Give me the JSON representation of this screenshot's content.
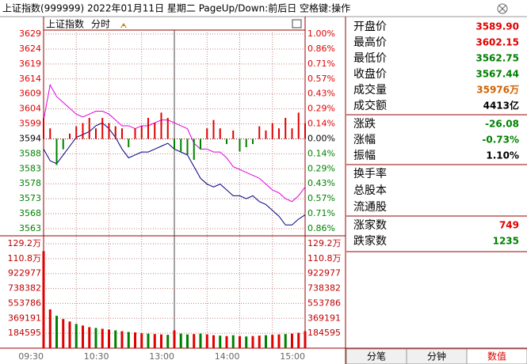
{
  "header": {
    "title": "上证指数(999999) 2022年01月11日 星期二 PageUp/Down:前后日 空格键:操作"
  },
  "chart_data": [
    {
      "type": "line",
      "title": "上证指数",
      "subtitle": "分时",
      "series": [
        {
          "color": "#000080",
          "values": [
            3590,
            3586,
            3585,
            3588,
            3591,
            3594,
            3595,
            3596,
            3598,
            3599,
            3597,
            3594,
            3590,
            3587,
            3588,
            3589,
            3589,
            3590,
            3591,
            3592,
            3590,
            3589,
            3588,
            3584,
            3580,
            3578,
            3577,
            3578,
            3576,
            3574,
            3574,
            3573,
            3574,
            3572,
            3571,
            3569,
            3567,
            3564,
            3564,
            3566,
            3567.44
          ]
        },
        {
          "color": "#e000e0",
          "values": [
            3600,
            3612,
            3608,
            3606,
            3604,
            3602,
            3601,
            3602,
            3603,
            3603,
            3602,
            3600,
            3598,
            3598,
            3597,
            3598,
            3598,
            3599,
            3600,
            3600,
            3599,
            3598,
            3597,
            3592,
            3590,
            3590,
            3589,
            3589,
            3587,
            3584,
            3583,
            3582,
            3581,
            3580,
            3578,
            3576,
            3575,
            3573,
            3572,
            3574,
            3577
          ]
        },
        {
          "type": "bar",
          "axis": "y2",
          "values": [
            0.2,
            0.1,
            -0.25,
            -0.1,
            0.05,
            0.12,
            0.15,
            0.2,
            0.1,
            0.2,
            0.15,
            0.12,
            0.1,
            -0.08,
            0.1,
            0.12,
            0.2,
            0.15,
            0.25,
            0.2,
            -0.1,
            -0.12,
            -0.15,
            -0.2,
            -0.1,
            0.1,
            0.18,
            0.1,
            -0.05,
            0.08,
            -0.12,
            -0.08,
            -0.05,
            0.12,
            0.08,
            0.15,
            0.1,
            0.2,
            0.1,
            0.25,
            0.15
          ]
        }
      ],
      "ylim": [
        3562.71,
        3629.46
      ],
      "yticks": [
        {
          "value": 3562.71,
          "label": "3563"
        },
        {
          "value": 3567.85,
          "label": "3568"
        },
        {
          "value": 3572.98,
          "label": "3573"
        },
        {
          "value": 3578.12,
          "label": "3578"
        },
        {
          "value": 3583.25,
          "label": "3583"
        },
        {
          "value": 3588.39,
          "label": "3588"
        },
        {
          "value": 3593.52,
          "label": "3594"
        },
        {
          "value": 3598.65,
          "label": "3599"
        },
        {
          "value": 3603.79,
          "label": "3604"
        },
        {
          "value": 3608.92,
          "label": "3609"
        },
        {
          "value": 3614.06,
          "label": "3614"
        },
        {
          "value": 3619.19,
          "label": "3619"
        },
        {
          "value": 3624.32,
          "label": "3624"
        },
        {
          "value": 3629.46,
          "label": "3629"
        }
      ],
      "y2lim": [
        -0.8571,
        1
      ],
      "y2ticks": [
        {
          "value": -0.8571,
          "label": "0.86%"
        },
        {
          "value": -0.7143,
          "label": "0.71%"
        },
        {
          "value": -0.5714,
          "label": "0.57%"
        },
        {
          "value": -0.4286,
          "label": "0.43%"
        },
        {
          "value": -0.2857,
          "label": "0.29%"
        },
        {
          "value": -0.1429,
          "label": "0.14%"
        },
        {
          "value": 0,
          "label": "0.00%"
        },
        {
          "value": 0.1429,
          "label": "0.14%"
        },
        {
          "value": 0.2857,
          "label": "0.29%"
        },
        {
          "value": 0.4286,
          "label": "0.43%"
        },
        {
          "value": 0.5714,
          "label": "0.57%"
        },
        {
          "value": 0.7143,
          "label": "0.71%"
        },
        {
          "value": 0.8571,
          "label": "0.86%"
        },
        {
          "value": 1,
          "label": "1.00%"
        }
      ],
      "grid": true,
      "up_color": "#e00000",
      "down_color": "#008000"
    },
    {
      "type": "bar",
      "categories": [
        "09:30",
        null,
        null,
        null,
        null,
        null,
        null,
        null,
        null,
        null,
        "10:30",
        null,
        null,
        null,
        null,
        null,
        null,
        null,
        null,
        null,
        "13:00",
        null,
        null,
        null,
        null,
        null,
        null,
        null,
        null,
        null,
        "14:00",
        null,
        null,
        null,
        null,
        null,
        null,
        null,
        null,
        null,
        "15:00"
      ],
      "values": [
        1200000,
        480000,
        400000,
        360000,
        330000,
        300000,
        280000,
        260000,
        250000,
        240000,
        230000,
        220000,
        210000,
        200000,
        195000,
        185000,
        180000,
        175000,
        170000,
        165000,
        220000,
        180000,
        170000,
        175000,
        180000,
        170000,
        160000,
        155000,
        150000,
        160000,
        150000,
        145000,
        150000,
        155000,
        160000,
        165000,
        170000,
        175000,
        180000,
        190000,
        210000
      ],
      "bar_colors": [
        "#e00000",
        "#e00000",
        "#008000",
        "#e00000",
        "#e00000",
        "#008000",
        "#e00000",
        "#e00000",
        "#008000",
        "#e00000",
        "#e00000",
        "#008000",
        "#e00000",
        "#008000",
        "#e00000",
        "#e00000",
        "#008000",
        "#e00000",
        "#e00000",
        "#008000",
        "#e00000",
        "#008000",
        "#008000",
        "#e00000",
        "#008000",
        "#e00000",
        "#e00000",
        "#008000",
        "#e00000",
        "#008000",
        "#e00000",
        "#008000",
        "#e00000",
        "#e00000",
        "#008000",
        "#e00000",
        "#e00000",
        "#008000",
        "#e00000",
        "#e00000",
        "#e00000"
      ],
      "ylim": [
        0,
        1292168
      ],
      "yticks": [
        184595,
        369191,
        553786,
        738382,
        922977,
        {
          "value": 1107573,
          "label": "110.8万"
        },
        {
          "value": 1292168,
          "label": "129.2万"
        }
      ]
    }
  ],
  "quote": {
    "groups": [
      [
        {
          "label": "开盘价",
          "value": "3589.90",
          "color": "#e00000"
        },
        {
          "label": "最高价",
          "value": "3602.15",
          "color": "#e00000"
        },
        {
          "label": "最低价",
          "value": "3562.75",
          "color": "#008000"
        },
        {
          "label": "收盘价",
          "value": "3567.44",
          "color": "#008000"
        },
        {
          "label": "成交量",
          "value": "35976万",
          "color": "#d06000"
        },
        {
          "label": "成交额",
          "value": "4413亿",
          "color": "#000000"
        }
      ],
      [
        {
          "label": "涨跌",
          "value": "-26.08",
          "color": "#008000"
        },
        {
          "label": "涨幅",
          "value": "-0.73%",
          "color": "#008000"
        },
        {
          "label": "振幅",
          "value": "1.10%",
          "color": "#000000"
        }
      ],
      [
        {
          "label": "换手率"
        },
        {
          "label": "总股本"
        },
        {
          "label": "流通股"
        }
      ],
      [
        {
          "label": "涨家数",
          "value": "749",
          "color": "#e00000"
        },
        {
          "label": "跌家数",
          "value": "1235",
          "color": "#008000"
        }
      ]
    ]
  },
  "tabs": [
    "分笔",
    "分钟",
    "数值"
  ]
}
